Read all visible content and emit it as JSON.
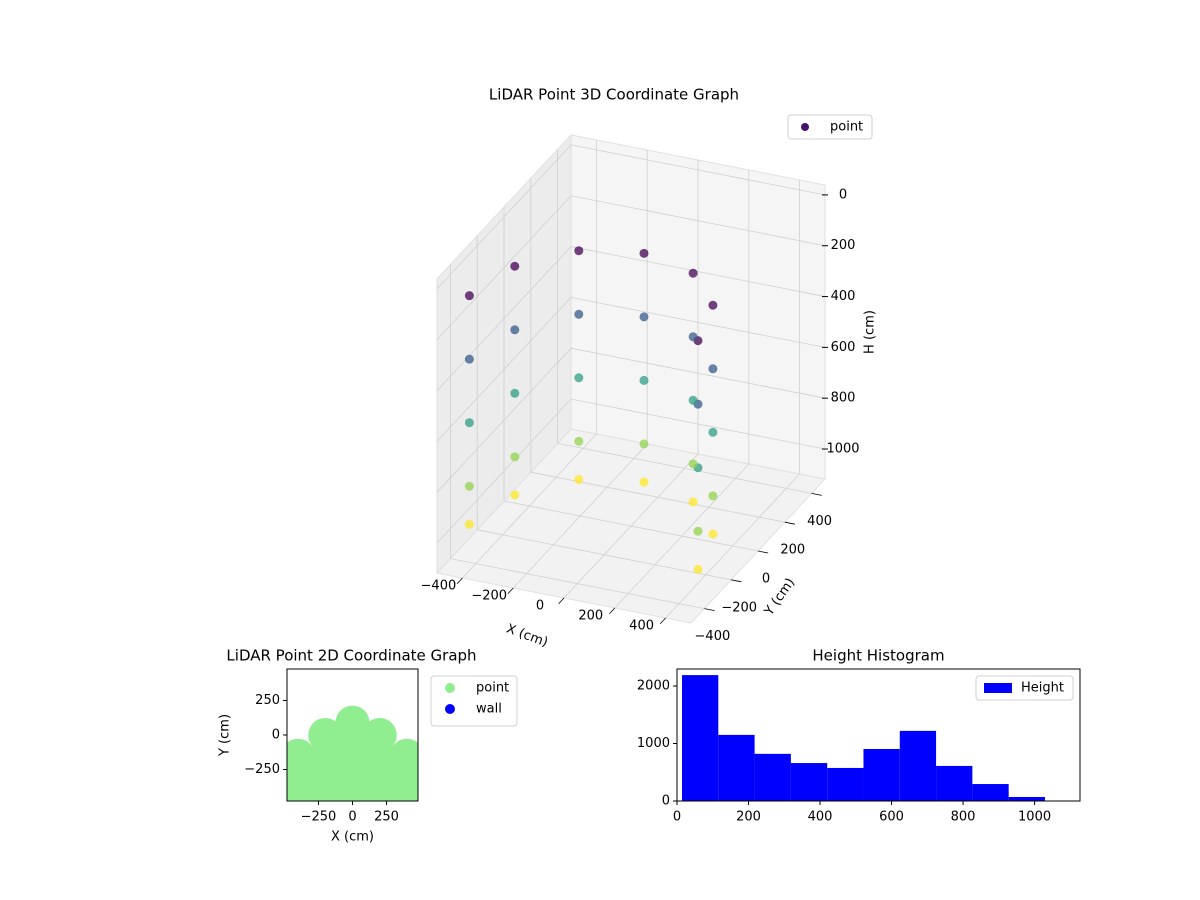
{
  "chart_data": [
    {
      "type": "scatter3d",
      "title": "LiDAR Point 3D Coordinate Graph",
      "xlabel": "X (cm)",
      "ylabel": "Y (cm)",
      "zlabel": "H (cm)",
      "xlim": [
        -500,
        500
      ],
      "ylim": [
        -500,
        500
      ],
      "zlim": [
        1118,
        -39
      ],
      "xticks": [
        {
          "value": -400,
          "label": "−400"
        },
        {
          "value": -200,
          "label": "−200"
        },
        0,
        200,
        400
      ],
      "yticks": [
        {
          "value": -400,
          "label": "−400"
        },
        {
          "value": -200,
          "label": "−200"
        },
        0,
        200,
        400
      ],
      "zticks": [
        0,
        200,
        400,
        600,
        800,
        1000
      ],
      "grid": true,
      "legend": "upper right",
      "colormap": [
        "#440154",
        "#3b528b",
        "#21918c",
        "#5ec962",
        "#fde725"
      ],
      "series": [
        {
          "name": "point",
          "color": "#46126b",
          "x": [
            450,
            450,
            450,
            450,
            450,
            390,
            390,
            390,
            390,
            390,
            225,
            225,
            225,
            225,
            225,
            0,
            0,
            0,
            0,
            0,
            -225,
            -225,
            -225,
            -225,
            -225,
            -390,
            -390,
            -390,
            -390,
            -390,
            -450,
            -450,
            -450,
            -450,
            -450
          ],
          "y": [
            -353,
            -353,
            -353,
            -353,
            -353,
            -128,
            -128,
            -128,
            -128,
            -128,
            37,
            37,
            37,
            37,
            37,
            97,
            97,
            97,
            97,
            97,
            37,
            37,
            37,
            37,
            37,
            -128,
            -128,
            -128,
            -128,
            -128,
            -353,
            -353,
            -353,
            -353,
            -353
          ],
          "z": [
            100,
            350,
            600,
            850,
            1000,
            100,
            350,
            600,
            850,
            1000,
            100,
            350,
            600,
            850,
            1000,
            100,
            350,
            600,
            850,
            1000,
            100,
            350,
            600,
            850,
            1000,
            100,
            350,
            600,
            850,
            1000,
            100,
            350,
            600,
            850,
            1000
          ]
        }
      ]
    },
    {
      "type": "scatter",
      "title": "LiDAR Point 2D Coordinate Graph",
      "xlabel": "X (cm)",
      "ylabel": "Y (cm)",
      "xlim": [
        -481,
        481
      ],
      "ylim": [
        -478,
        478
      ],
      "xticks": [
        {
          "value": -250,
          "label": "−250"
        },
        0,
        250
      ],
      "yticks": [
        {
          "value": -250,
          "label": "−250"
        },
        0,
        250
      ],
      "legend": "outside upper right",
      "series": [
        {
          "name": "point",
          "color": "#90ee90",
          "x": [
            -400,
            -400,
            -400,
            -200,
            -200,
            -200,
            -200,
            0,
            0,
            0,
            0,
            0,
            200,
            200,
            200,
            200,
            400,
            400,
            400
          ],
          "y": [
            -450,
            -300,
            -150,
            -450,
            -300,
            -150,
            0,
            -450,
            -300,
            -150,
            0,
            90,
            -450,
            -300,
            -150,
            0,
            -450,
            -300,
            -150
          ]
        },
        {
          "name": "wall",
          "color": "#0000ff",
          "x": [],
          "y": []
        }
      ]
    },
    {
      "type": "histogram",
      "title": "Height Histogram",
      "name": "Height",
      "color": "#0000ff",
      "bins": [
        14,
        115.5,
        217,
        318.5,
        420,
        521.5,
        623,
        724.5,
        826,
        927.5,
        1029
      ],
      "counts": [
        2190,
        1150,
        820,
        660,
        575,
        905,
        1220,
        610,
        295,
        70
      ],
      "xlim": [
        0,
        1127
      ],
      "ylim": [
        0,
        2296
      ],
      "xticks": [
        0,
        200,
        400,
        600,
        800,
        1000
      ],
      "yticks": [
        0,
        1000,
        2000
      ],
      "legend": "upper right"
    }
  ]
}
